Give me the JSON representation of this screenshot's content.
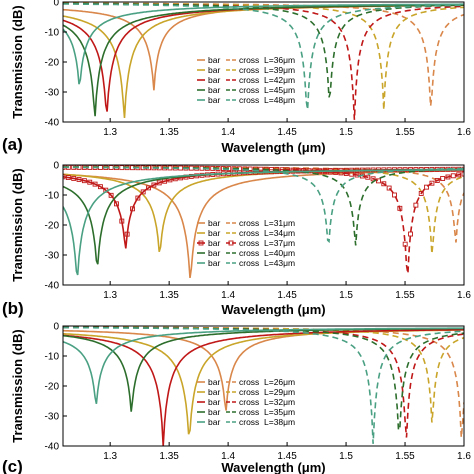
{
  "chart_data": [
    {
      "type": "line",
      "panel_label": "(a)",
      "xlabel": "Wavelength (μm)",
      "ylabel": "Transmission (dB)",
      "xlim": [
        1.26,
        1.6
      ],
      "ylim": [
        -40,
        0
      ],
      "xticks": [
        "1.3",
        "1.35",
        "1.4",
        "1.45",
        "1.5",
        "1.55",
        "1.6"
      ],
      "yticks": [
        "0",
        "-10",
        "-20",
        "-30",
        "-40"
      ],
      "legend_position": "center-right",
      "legend": [
        "bar",
        "cross",
        "L=36μm",
        "L=39μm",
        "L=42μm",
        "L=45μm",
        "L=48μm"
      ],
      "series": [
        {
          "name": "L=36μm",
          "color": "#d9874a",
          "bar_dip_x": 1.337,
          "bar_dip_y": -30,
          "cross_dip_x": 1.572,
          "cross_dip_y": -38
        },
        {
          "name": "L=39μm",
          "color": "#c9a52a",
          "bar_dip_x": 1.312,
          "bar_dip_y": -40,
          "cross_dip_x": 1.532,
          "cross_dip_y": -36
        },
        {
          "name": "L=42μm",
          "color": "#c01818",
          "bar_dip_x": 1.297,
          "bar_dip_y": -40,
          "cross_dip_x": 1.507,
          "cross_dip_y": -40
        },
        {
          "name": "L=45μm",
          "color": "#2d6e2d",
          "bar_dip_x": 1.287,
          "bar_dip_y": -40,
          "cross_dip_x": 1.486,
          "cross_dip_y": -36
        },
        {
          "name": "L=48μm",
          "color": "#4aa083",
          "bar_dip_x": 1.274,
          "bar_dip_y": -30,
          "cross_dip_x": 1.467,
          "cross_dip_y": -40
        }
      ]
    },
    {
      "type": "line",
      "panel_label": "(b)",
      "xlabel": "Wavelength (μm)",
      "ylabel": "Transmission (dB)",
      "xlim": [
        1.26,
        1.6
      ],
      "ylim": [
        -40,
        0
      ],
      "xticks": [
        "1.3",
        "1.35",
        "1.4",
        "1.45",
        "1.5",
        "1.55",
        "1.6"
      ],
      "yticks": [
        "0",
        "-10",
        "-20",
        "-30",
        "-40"
      ],
      "legend_position": "center-right",
      "legend": [
        "bar",
        "cross",
        "L=31μm",
        "L=34μm",
        "L=37μm",
        "L=40μm",
        "L=43μm"
      ],
      "series": [
        {
          "name": "L=31μm",
          "color": "#d9874a",
          "bar_dip_x": 1.368,
          "bar_dip_y": -40,
          "cross_dip_x": 1.593,
          "cross_dip_y": -27
        },
        {
          "name": "L=34μm",
          "color": "#c9a52a",
          "bar_dip_x": 1.342,
          "bar_dip_y": -31,
          "cross_dip_x": 1.573,
          "cross_dip_y": -31
        },
        {
          "name": "L=37μm",
          "color": "#c01818",
          "bar_dip_x": 1.313,
          "bar_dip_y": -29,
          "cross_dip_x": 1.552,
          "cross_dip_y": -40,
          "markers": true
        },
        {
          "name": "L=40μm",
          "color": "#2d6e2d",
          "bar_dip_x": 1.289,
          "bar_dip_y": -36,
          "cross_dip_x": 1.508,
          "cross_dip_y": -28
        },
        {
          "name": "L=43μm",
          "color": "#4aa083",
          "bar_dip_x": 1.272,
          "bar_dip_y": -40,
          "cross_dip_x": 1.485,
          "cross_dip_y": -29
        }
      ]
    },
    {
      "type": "line",
      "panel_label": "(c)",
      "xlabel": "Wavelength (μm)",
      "ylabel": "Transmission (dB)",
      "xlim": [
        1.26,
        1.6
      ],
      "ylim": [
        -40,
        0
      ],
      "xticks": [
        "1.3",
        "1.35",
        "1.4",
        "1.45",
        "1.5",
        "1.55",
        "1.6"
      ],
      "yticks": [
        "0",
        "-10",
        "-20",
        "-30",
        "-40"
      ],
      "legend_position": "center-right",
      "legend": [
        "bar",
        "cross",
        "L=26μm",
        "L=29μm",
        "L=32μm",
        "L=35μm",
        "L=38μm"
      ],
      "series": [
        {
          "name": "L=26μm",
          "color": "#d9874a",
          "bar_dip_x": 1.398,
          "bar_dip_y": -30,
          "cross_dip_x": 1.598,
          "cross_dip_y": -40
        },
        {
          "name": "L=29μm",
          "color": "#c9a52a",
          "bar_dip_x": 1.367,
          "bar_dip_y": -40,
          "cross_dip_x": 1.573,
          "cross_dip_y": -34
        },
        {
          "name": "L=32μm",
          "color": "#c01818",
          "bar_dip_x": 1.345,
          "bar_dip_y": -40,
          "cross_dip_x": 1.551,
          "cross_dip_y": -40
        },
        {
          "name": "L=35μm",
          "color": "#2d6e2d",
          "bar_dip_x": 1.318,
          "bar_dip_y": -30,
          "cross_dip_x": 1.545,
          "cross_dip_y": -40
        },
        {
          "name": "L=38μm",
          "color": "#4aa083",
          "bar_dip_x": 1.288,
          "bar_dip_y": -28,
          "cross_dip_x": 1.523,
          "cross_dip_y": -40
        }
      ]
    }
  ]
}
